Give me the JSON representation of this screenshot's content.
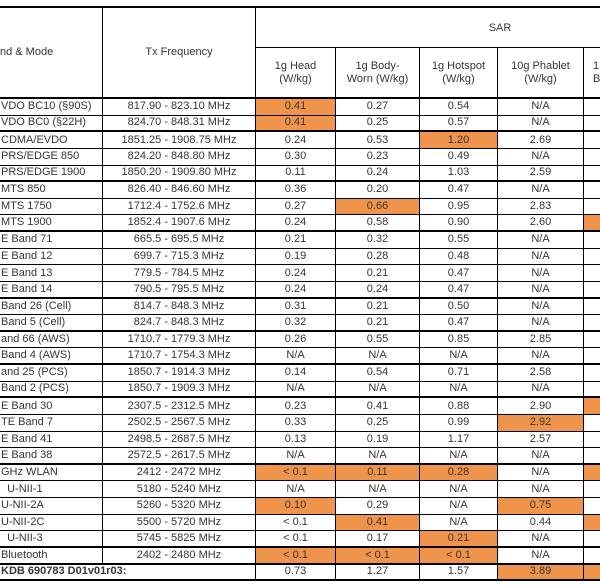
{
  "colors": {
    "highlight": "#F0944C",
    "border": "#000000",
    "text": "#353535"
  },
  "header": {
    "band_mode": "nd & Mode",
    "tx_frequency": "Tx Frequency",
    "sar": "SAR",
    "columns": [
      "1g Head\n(W/kg)",
      "1g Body-\nWorn (W/kg)",
      "1g Hotspot\n(W/kg)",
      "10g Phablet\n(W/kg)",
      "1\nBo"
    ]
  },
  "rows": [
    {
      "band": "VDO BC10 (§90S)",
      "freq": "817.90 - 823.10 MHz",
      "values": [
        "0.41",
        "0.27",
        "0.54",
        "N/A",
        ""
      ],
      "hl": [
        0
      ],
      "thick": false
    },
    {
      "band": "VDO BC0 (§22H)",
      "freq": "824.70 - 848.31 MHz",
      "values": [
        "0.41",
        "0.25",
        "0.57",
        "N/A",
        ""
      ],
      "hl": [
        0
      ],
      "thick": true
    },
    {
      "band": "CDMA/EVDO",
      "freq": "1851.25 - 1908.75 MHz",
      "values": [
        "0.24",
        "0.53",
        "1.20",
        "2.69",
        ""
      ],
      "hl": [
        2
      ],
      "thick": false
    },
    {
      "band": "PRS/EDGE 850",
      "freq": "824.20 - 848.80 MHz",
      "values": [
        "0.30",
        "0.23",
        "0.49",
        "N/A",
        ""
      ],
      "hl": [],
      "thick": false
    },
    {
      "band": "PRS/EDGE 1900",
      "freq": "1850.20 - 1909.80 MHz",
      "values": [
        "0.11",
        "0.24",
        "1.03",
        "2.59",
        ""
      ],
      "hl": [],
      "thick": true
    },
    {
      "band": "MTS 850",
      "freq": "826.40 - 846.60 MHz",
      "values": [
        "0.36",
        "0.20",
        "0.47",
        "N/A",
        ""
      ],
      "hl": [],
      "thick": false
    },
    {
      "band": "MTS 1750",
      "freq": "1712.4 - 1752.6 MHz",
      "values": [
        "0.27",
        "0.66",
        "0.95",
        "2.83",
        ""
      ],
      "hl": [
        1
      ],
      "thick": false
    },
    {
      "band": "MTS 1900",
      "freq": "1852.4 - 1907.6 MHz",
      "values": [
        "0.24",
        "0.58",
        "0.90",
        "2.60",
        ""
      ],
      "hl": [
        4
      ],
      "thick": true
    },
    {
      "band": "E Band 71",
      "freq": "665.5 - 695.5 MHz",
      "values": [
        "0.21",
        "0.32",
        "0.55",
        "N/A",
        ""
      ],
      "hl": [],
      "thick": false
    },
    {
      "band": "E Band 12",
      "freq": "699.7 - 715.3 MHz",
      "values": [
        "0.19",
        "0.28",
        "0.48",
        "N/A",
        ""
      ],
      "hl": [],
      "thick": false
    },
    {
      "band": "E Band 13",
      "freq": "779.5 - 784.5 MHz",
      "values": [
        "0.24",
        "0.21",
        "0.47",
        "N/A",
        ""
      ],
      "hl": [],
      "thick": false
    },
    {
      "band": "E Band 14",
      "freq": "790.5 - 795.5 MHz",
      "values": [
        "0.24",
        "0.24",
        "0.47",
        "N/A",
        ""
      ],
      "hl": [],
      "thick": true
    },
    {
      "band": "Band 26 (Cell)",
      "freq": "814.7 - 848.3 MHz",
      "values": [
        "0.31",
        "0.21",
        "0.50",
        "N/A",
        ""
      ],
      "hl": [],
      "thick": false
    },
    {
      "band": "Band 5 (Cell)",
      "freq": "824.7 - 848.3 MHz",
      "values": [
        "0.32",
        "0.21",
        "0.47",
        "N/A",
        ""
      ],
      "hl": [],
      "thick": true
    },
    {
      "band": "and 66 (AWS)",
      "freq": "1710.7 - 1779.3 MHz",
      "values": [
        "0.26",
        "0.55",
        "0.85",
        "2.85",
        ""
      ],
      "hl": [],
      "thick": false
    },
    {
      "band": "Band 4 (AWS)",
      "freq": "1710.7 - 1754.3 MHz",
      "values": [
        "N/A",
        "N/A",
        "N/A",
        "N/A",
        ""
      ],
      "hl": [],
      "thick": true
    },
    {
      "band": "and 25 (PCS)",
      "freq": "1850.7 - 1914.3 MHz",
      "values": [
        "0.14",
        "0.54",
        "0.71",
        "2.58",
        ""
      ],
      "hl": [],
      "thick": false
    },
    {
      "band": "Band 2 (PCS)",
      "freq": "1850.7 - 1909.3 MHz",
      "values": [
        "N/A",
        "N/A",
        "N/A",
        "N/A",
        ""
      ],
      "hl": [],
      "thick": true
    },
    {
      "band": "E Band 30",
      "freq": "2307.5 - 2312.5 MHz",
      "values": [
        "0.23",
        "0.41",
        "0.88",
        "2.90",
        ""
      ],
      "hl": [
        4
      ],
      "thick": false
    },
    {
      "band": "TE Band 7",
      "freq": "2502.5 - 2567.5 MHz",
      "values": [
        "0.33",
        "0.25",
        "0.99",
        "2.92",
        ""
      ],
      "hl": [
        3
      ],
      "thick": false
    },
    {
      "band": "E Band 41",
      "freq": "2498.5 - 2687.5 MHz",
      "values": [
        "0.13",
        "0.19",
        "1.17",
        "2.57",
        ""
      ],
      "hl": [],
      "thick": false
    },
    {
      "band": "E Band 38",
      "freq": "2572.5 - 2617.5 MHz",
      "values": [
        "N/A",
        "N/A",
        "N/A",
        "N/A",
        ""
      ],
      "hl": [],
      "thick": true
    },
    {
      "band": "GHz WLAN",
      "freq": "2412 - 2472 MHz",
      "values": [
        "< 0.1",
        "0.11",
        "0.28",
        "N/A",
        ""
      ],
      "hl": [
        0,
        1,
        2,
        4
      ],
      "thick": false
    },
    {
      "band": "  U-NII-1",
      "freq": "5180 - 5240 MHz",
      "values": [
        "N/A",
        "N/A",
        "N/A",
        "N/A",
        ""
      ],
      "hl": [],
      "thick": false
    },
    {
      "band": "U-NII-2A",
      "freq": "5260 - 5320 MHz",
      "values": [
        "0.10",
        "0.29",
        "N/A",
        "0.75",
        ""
      ],
      "hl": [
        0,
        3
      ],
      "thick": false
    },
    {
      "band": "U-NII-2C",
      "freq": "5500 - 5720 MHz",
      "values": [
        "< 0.1",
        "0.41",
        "N/A",
        "0.44",
        ""
      ],
      "hl": [
        1,
        4
      ],
      "thick": false
    },
    {
      "band": "  U-NII-3",
      "freq": "5745 - 5825 MHz",
      "values": [
        "< 0.1",
        "0.17",
        "0.21",
        "N/A",
        ""
      ],
      "hl": [
        2
      ],
      "thick": true
    },
    {
      "band": "Bluetooth",
      "freq": "2402 - 2480 MHz",
      "values": [
        "< 0.1",
        "< 0.1",
        "< 0.1",
        "N/A",
        ""
      ],
      "hl": [
        0,
        1,
        2
      ],
      "thick": true
    }
  ],
  "footer": {
    "label": "KDB 690783 D01v01r03:",
    "values": [
      "0.73",
      "1.27",
      "1.57",
      "3.89",
      ""
    ],
    "hl": [
      3,
      4
    ]
  }
}
